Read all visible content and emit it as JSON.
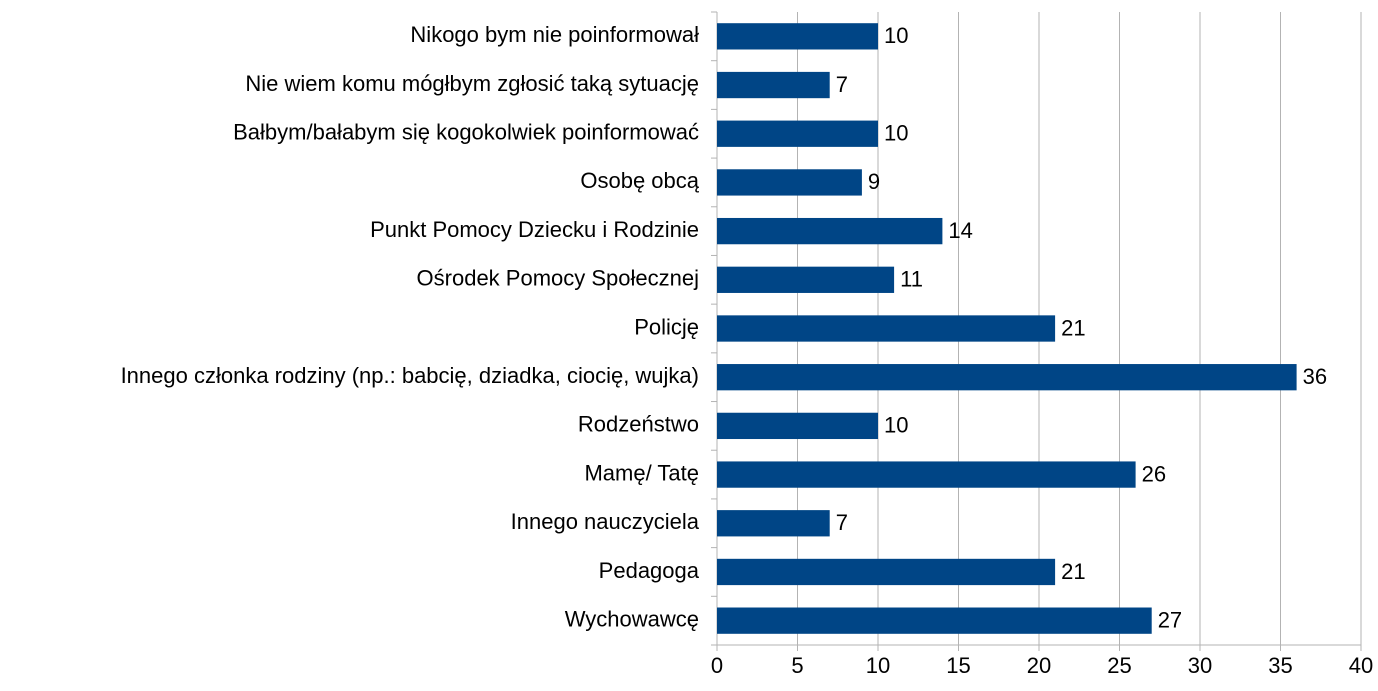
{
  "chart_data": {
    "type": "hbar",
    "categories": [
      "Nikogo bym nie poinformował",
      "Nie wiem komu mógłbym zgłosić taką sytuację",
      "Bałbym/bałabym się kogokolwiek poinformować",
      "Osobę obcą",
      "Punkt Pomocy Dziecku i Rodzinie",
      "Ośrodek Pomocy Społecznej",
      "Policję",
      "Innego członka rodziny (np.: babcię, dziadka, ciocię, wujka)",
      "Rodzeństwo",
      "Mamę/ Tatę",
      "Innego nauczyciela",
      "Pedagoga",
      "Wychowawcę"
    ],
    "values": [
      10,
      7,
      10,
      9,
      14,
      11,
      21,
      36,
      10,
      26,
      7,
      21,
      27
    ],
    "color": "#004586",
    "xlim": [
      0,
      40
    ],
    "xticks": [
      0,
      5,
      10,
      15,
      20,
      25,
      30,
      35,
      40
    ],
    "grid": true
  }
}
